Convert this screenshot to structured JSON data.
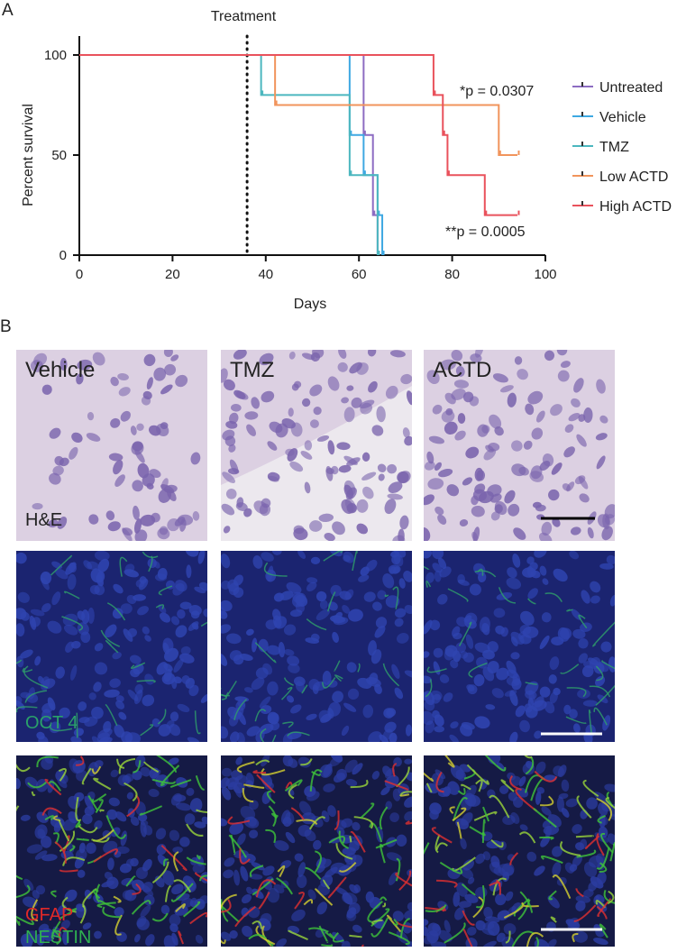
{
  "panel_a_label": "A",
  "chart_data": {
    "type": "survival",
    "x_label": "Days",
    "y_label": "Percent survival",
    "xlim": [
      0,
      100
    ],
    "xticks": [
      0,
      20,
      40,
      60,
      80,
      100
    ],
    "ylim": [
      0,
      100
    ],
    "yticks": [
      0,
      50,
      100
    ],
    "treatment": {
      "label": "Treatment",
      "x": 36
    },
    "annotations": [
      "*p = 0.0307",
      "**p = 0.0005"
    ],
    "series": [
      {
        "name": "Untreated",
        "color": "#8d6cc2",
        "x": [
          0,
          61,
          63,
          64
        ],
        "values": [
          100,
          60,
          20,
          0
        ]
      },
      {
        "name": "Vehicle",
        "color": "#3ea8e2",
        "x": [
          0,
          58,
          61,
          64,
          65
        ],
        "values": [
          100,
          60,
          40,
          20,
          0
        ]
      },
      {
        "name": "TMZ",
        "color": "#4cb7bf",
        "x": [
          0,
          39,
          58,
          64
        ],
        "values": [
          100,
          80,
          40,
          0
        ]
      },
      {
        "name": "Low ACTD",
        "color": "#f1945c",
        "x": [
          0,
          42,
          90,
          94
        ],
        "values": [
          100,
          75,
          50,
          50
        ]
      },
      {
        "name": "High ACTD",
        "color": "#e9525c",
        "x": [
          0,
          76,
          78,
          79,
          87,
          94
        ],
        "values": [
          100,
          80,
          60,
          40,
          20,
          20
        ]
      }
    ]
  },
  "panel_b": {
    "label": "B",
    "columns": [
      "Vehicle",
      "TMZ",
      "ACTD"
    ],
    "stains": [
      "H&E",
      "OCT 4",
      "GFAP",
      "NESTIN"
    ]
  }
}
